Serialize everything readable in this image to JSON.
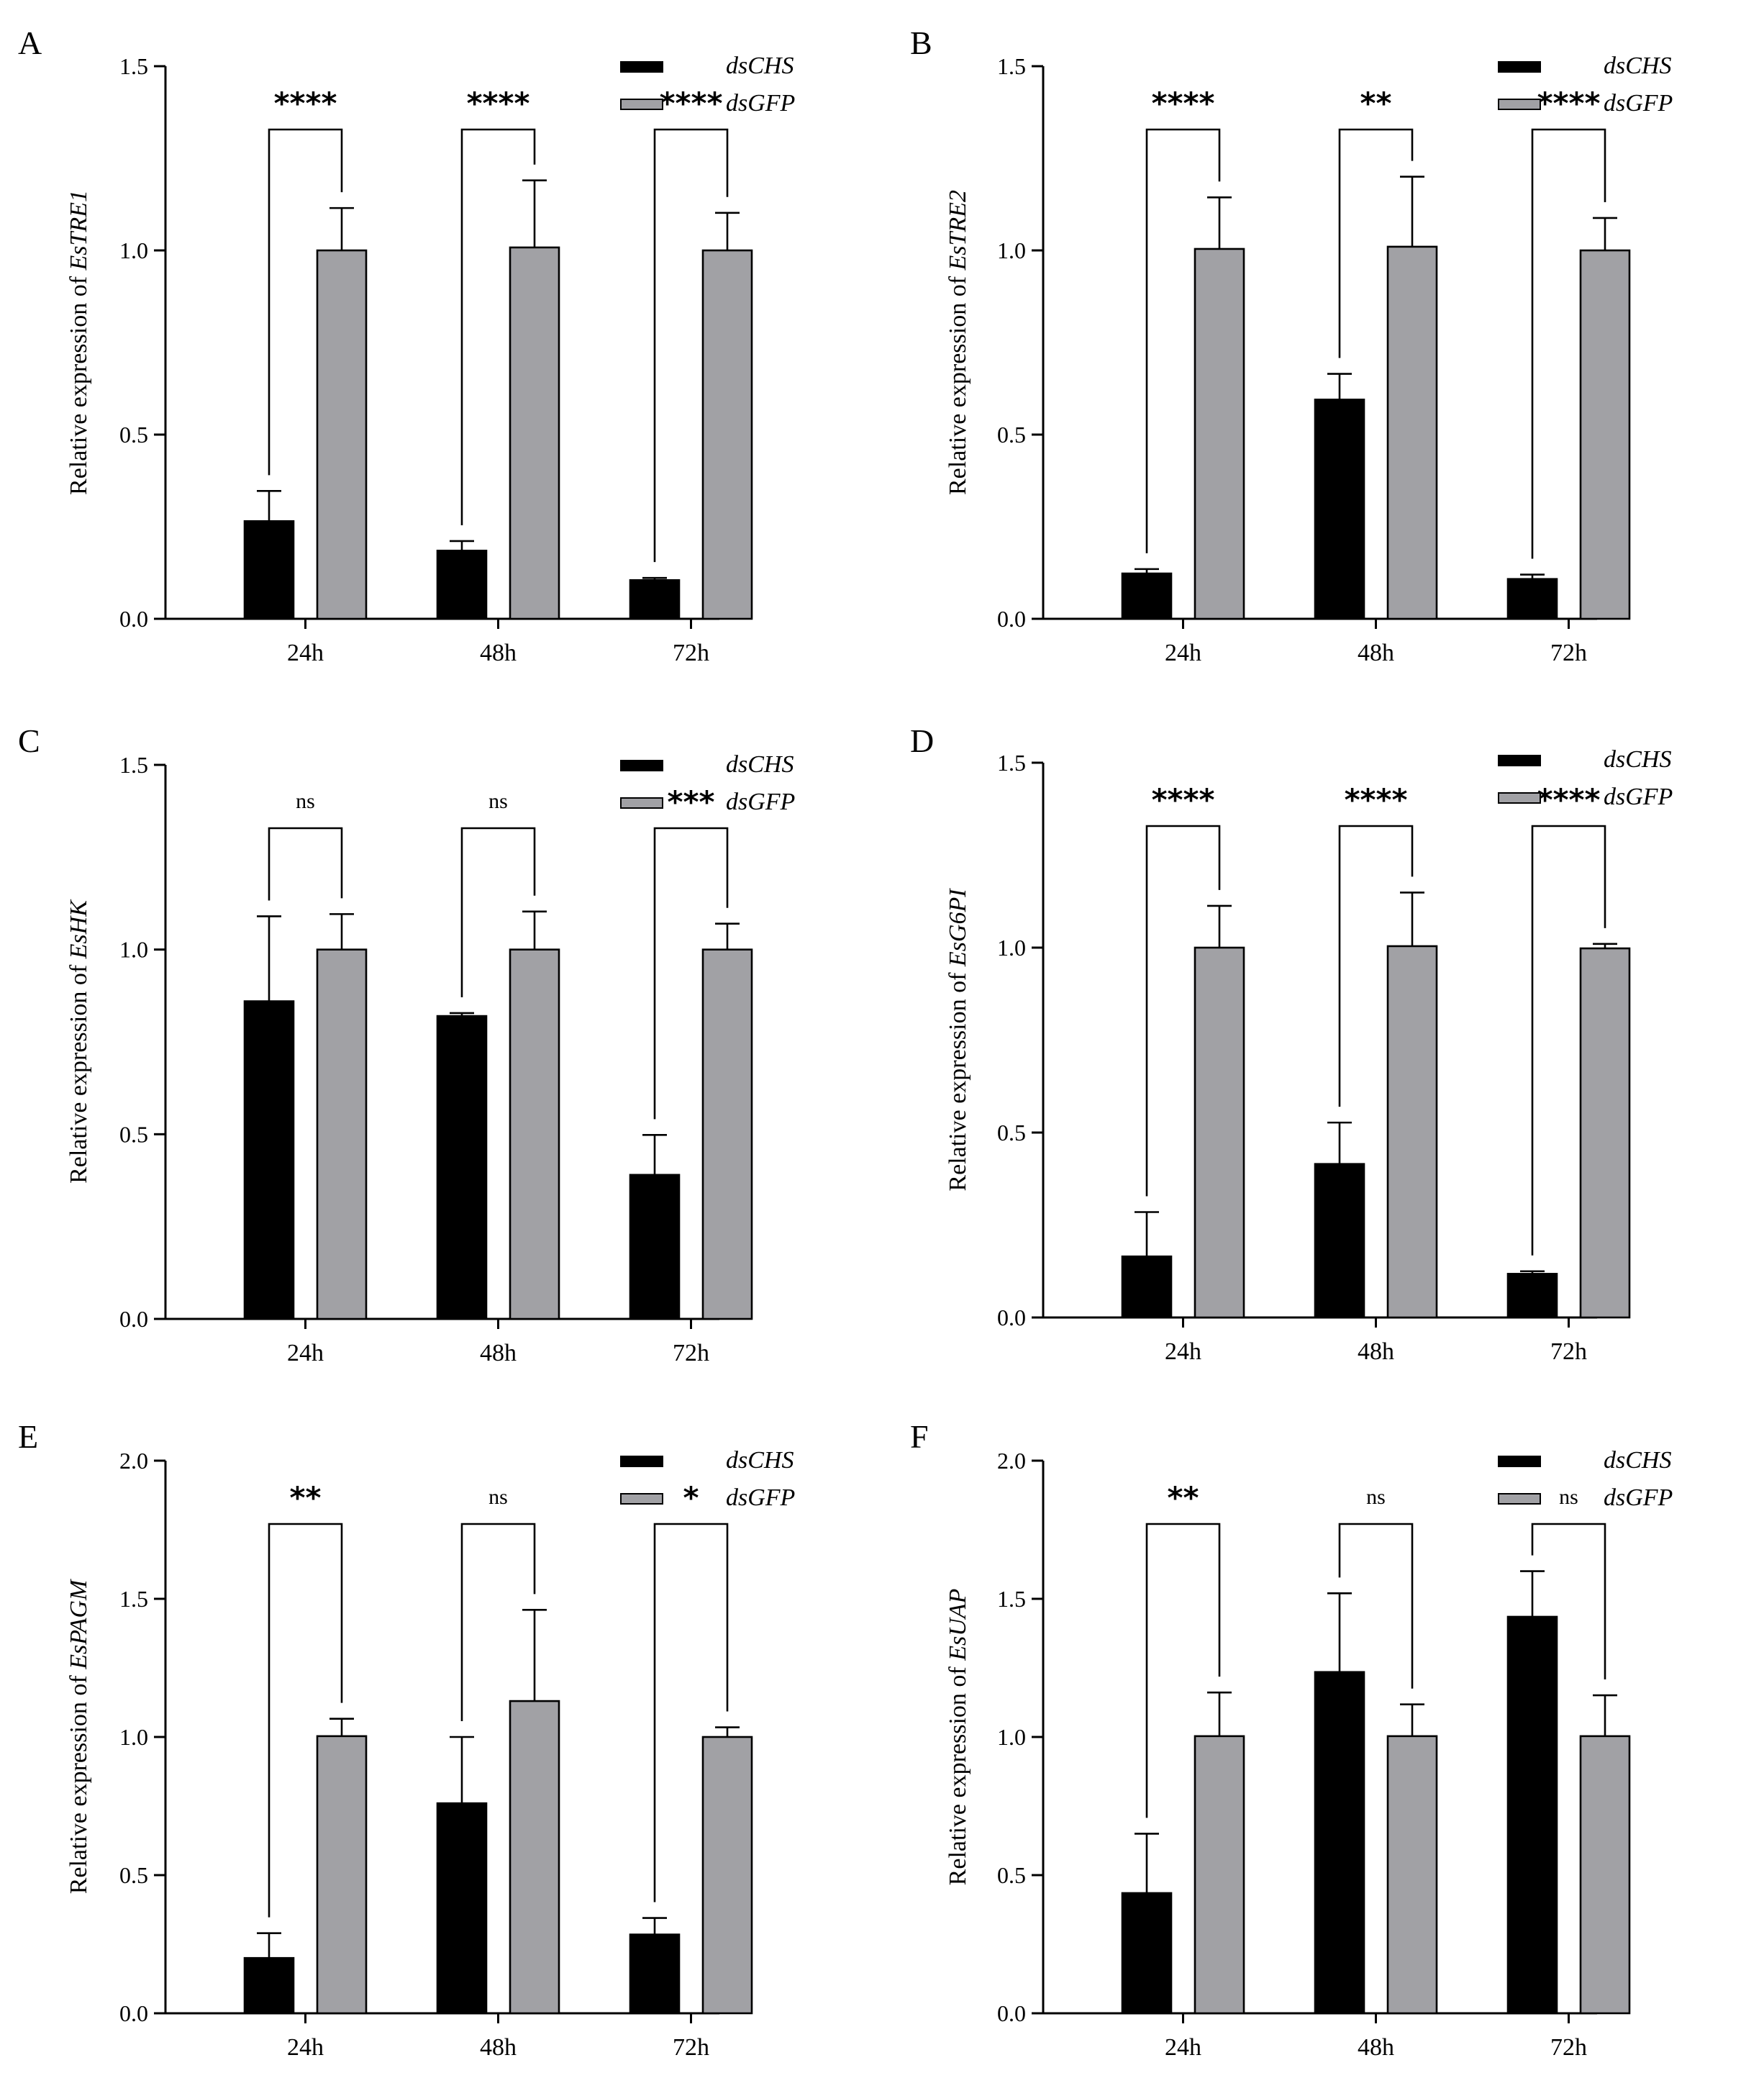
{
  "legend": {
    "series": [
      "dsCHS",
      "dsGFP"
    ]
  },
  "colors": {
    "dsCHS": "#000000",
    "dsGFP": "#a1a1a5"
  },
  "chart_data": [
    {
      "panel": "A",
      "type": "bar",
      "ylabel_prefix": "Relative expression of ",
      "ylabel_gene": "EsTRE1",
      "ylim": [
        0,
        1.5
      ],
      "yticks": [
        "0.0",
        "0.5",
        "1.0",
        "1.5"
      ],
      "categories": [
        "24h",
        "48h",
        "72h"
      ],
      "series": [
        {
          "name": "dsCHS",
          "values": [
            0.265,
            0.185,
            0.105
          ],
          "errors": [
            0.082,
            0.026,
            0.006
          ]
        },
        {
          "name": "dsGFP",
          "values": [
            1.0,
            1.008,
            1.0
          ],
          "errors": [
            0.115,
            0.182,
            0.102
          ]
        }
      ],
      "significance": [
        "****",
        "****",
        "****"
      ]
    },
    {
      "panel": "B",
      "type": "bar",
      "ylabel_prefix": "Relative expression of ",
      "ylabel_gene": "EsTRE2",
      "ylim": [
        0,
        1.5
      ],
      "yticks": [
        "0.0",
        "0.5",
        "1.0",
        "1.5"
      ],
      "categories": [
        "24h",
        "48h",
        "72h"
      ],
      "series": [
        {
          "name": "dsCHS",
          "values": [
            0.123,
            0.595,
            0.108
          ],
          "errors": [
            0.012,
            0.07,
            0.012
          ]
        },
        {
          "name": "dsGFP",
          "values": [
            1.004,
            1.01,
            1.0
          ],
          "errors": [
            0.14,
            0.19,
            0.088
          ]
        }
      ],
      "significance": [
        "****",
        "**",
        "****"
      ]
    },
    {
      "panel": "C",
      "type": "bar",
      "ylabel_prefix": "Relative expression of ",
      "ylabel_gene": "EsHK",
      "ylim": [
        0,
        1.5
      ],
      "yticks": [
        "0.0",
        "0.5",
        "1.0",
        "1.5"
      ],
      "categories": [
        "24h",
        "48h",
        "72h"
      ],
      "series": [
        {
          "name": "dsCHS",
          "values": [
            0.86,
            0.82,
            0.39
          ],
          "errors": [
            0.23,
            0.008,
            0.108
          ]
        },
        {
          "name": "dsGFP",
          "values": [
            1.0,
            1.0,
            1.0
          ],
          "errors": [
            0.096,
            0.103,
            0.07
          ]
        }
      ],
      "significance": [
        "ns",
        "ns",
        "***"
      ]
    },
    {
      "panel": "D",
      "type": "bar",
      "ylabel_prefix": "Relative expression of ",
      "ylabel_gene": "EsG6PI",
      "ylim": [
        0,
        1.5
      ],
      "yticks": [
        "0.0",
        "0.5",
        "1.0",
        "1.5"
      ],
      "categories": [
        "24h",
        "48h",
        "72h"
      ],
      "series": [
        {
          "name": "dsCHS",
          "values": [
            0.165,
            0.415,
            0.118
          ],
          "errors": [
            0.12,
            0.112,
            0.007
          ]
        },
        {
          "name": "dsGFP",
          "values": [
            1.0,
            1.004,
            0.998
          ],
          "errors": [
            0.113,
            0.145,
            0.012
          ]
        }
      ],
      "significance": [
        "****",
        "****",
        "****"
      ]
    },
    {
      "panel": "E",
      "type": "bar",
      "ylabel_prefix": "Relative expression of ",
      "ylabel_gene": "EsPAGM",
      "ylim": [
        0,
        2.0
      ],
      "yticks": [
        "0.0",
        "0.5",
        "1.0",
        "1.5",
        "2.0"
      ],
      "categories": [
        "24h",
        "48h",
        "72h"
      ],
      "series": [
        {
          "name": "dsCHS",
          "values": [
            0.2,
            0.76,
            0.285
          ],
          "errors": [
            0.09,
            0.24,
            0.06
          ]
        },
        {
          "name": "dsGFP",
          "values": [
            1.003,
            1.13,
            1.0
          ],
          "errors": [
            0.063,
            0.33,
            0.035
          ]
        }
      ],
      "significance": [
        "**",
        "ns",
        "*"
      ]
    },
    {
      "panel": "F",
      "type": "bar",
      "ylabel_prefix": "Relative expression of ",
      "ylabel_gene": "EsUAP",
      "ylim": [
        0,
        2.0
      ],
      "yticks": [
        "0.0",
        "0.5",
        "1.0",
        "1.5",
        "2.0"
      ],
      "categories": [
        "24h",
        "48h",
        "72h"
      ],
      "series": [
        {
          "name": "dsCHS",
          "values": [
            0.435,
            1.235,
            1.435
          ],
          "errors": [
            0.215,
            0.285,
            0.165
          ]
        },
        {
          "name": "dsGFP",
          "values": [
            1.003,
            1.003,
            1.003
          ],
          "errors": [
            0.158,
            0.115,
            0.148
          ]
        }
      ],
      "significance": [
        "**",
        "ns",
        "ns"
      ]
    }
  ]
}
